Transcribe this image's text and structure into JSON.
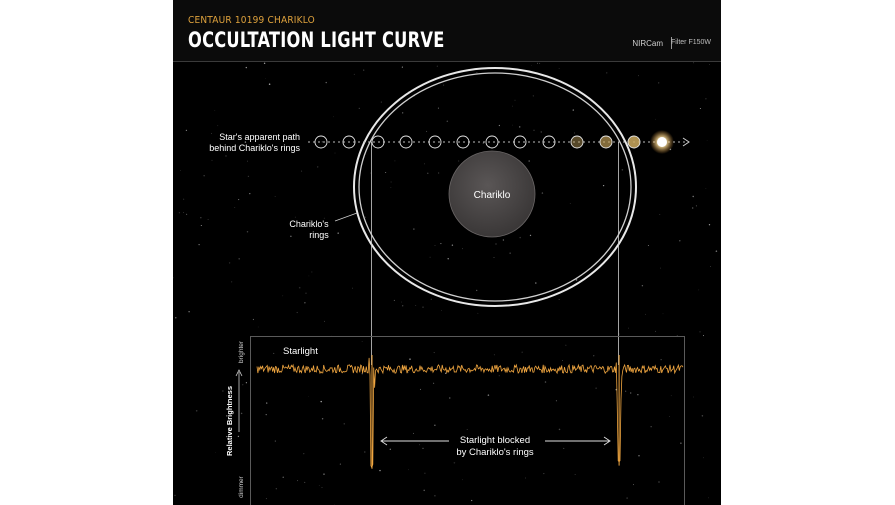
{
  "header": {
    "kicker": "CENTAUR 10199 CHARIKLO",
    "title": "OCCULTATION LIGHT CURVE",
    "instrument": "NIRCam",
    "filter": "Filter F150W"
  },
  "diagram": {
    "path_label_line1": "Star's apparent path",
    "path_label_line2": "behind Chariklo's rings",
    "rings_label_line1": "Chariklo's",
    "rings_label_line2": "rings",
    "body_label": "Chariklo"
  },
  "chart_data": {
    "type": "line",
    "title": "",
    "ylabel": "Relative Brightness",
    "y_axis_top": "brighter",
    "y_axis_bottom": "dimmer",
    "series": [
      {
        "name": "Starlight"
      }
    ],
    "annotation_line1": "Starlight blocked",
    "annotation_line2": "by Chariklo's rings",
    "baseline": 1.0,
    "noise_amplitude": 0.04,
    "dips": [
      {
        "event": "ingress ring crossing",
        "position_fraction": 0.27,
        "min_relative_brightness": 0.05
      },
      {
        "event": "egress ring crossing",
        "position_fraction": 0.85,
        "min_relative_brightness": 0.08
      }
    ]
  },
  "colors": {
    "accent_orange": "#f0a640",
    "star_glow": "#f5c46a",
    "background": "#000000",
    "text": "#ffffff"
  }
}
